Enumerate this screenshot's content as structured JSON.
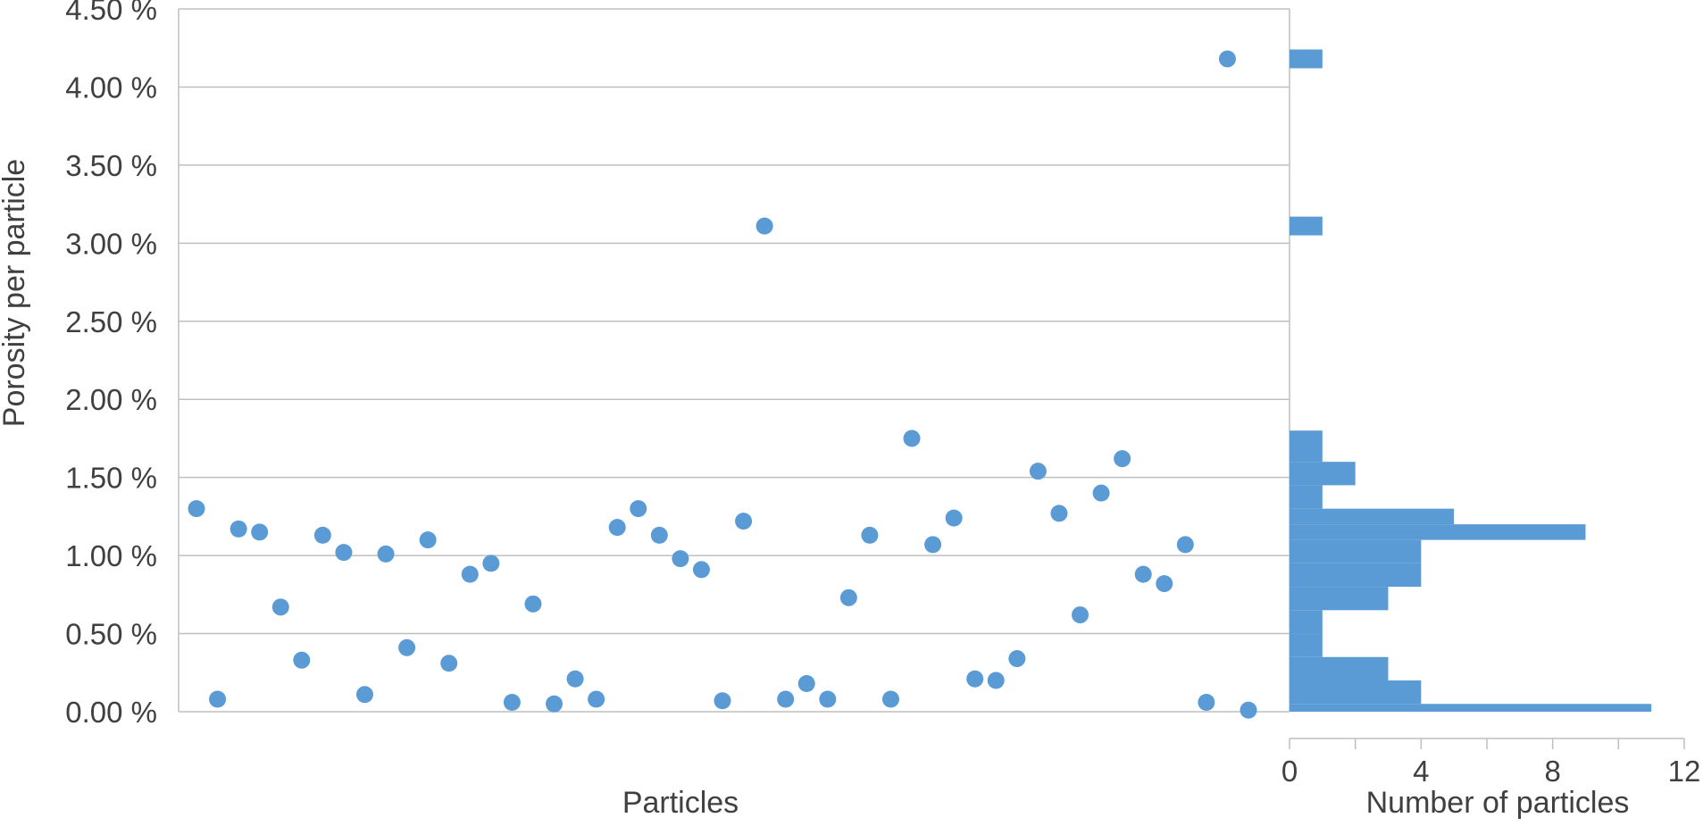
{
  "chart_data": [
    {
      "type": "scatter",
      "xlabel": "Particles",
      "ylabel": "Porosity per particle",
      "y_tick_labels": [
        "0.00 %",
        "0.50 %",
        "1.00 %",
        "1.50 %",
        "2.00 %",
        "2.50 %",
        "3.00 %",
        "3.50 %",
        "4.00 %",
        "4.50 %"
      ],
      "ylim": [
        0,
        4.5
      ],
      "y_unit": "%",
      "grid": "horizontal",
      "color": "#5b9bd5",
      "points": [
        {
          "x": 1,
          "y": 1.3
        },
        {
          "x": 2,
          "y": 0.08
        },
        {
          "x": 3,
          "y": 1.17
        },
        {
          "x": 4,
          "y": 1.15
        },
        {
          "x": 5,
          "y": 0.67
        },
        {
          "x": 6,
          "y": 0.33
        },
        {
          "x": 7,
          "y": 1.13
        },
        {
          "x": 8,
          "y": 1.02
        },
        {
          "x": 9,
          "y": 0.11
        },
        {
          "x": 10,
          "y": 1.01
        },
        {
          "x": 11,
          "y": 0.41
        },
        {
          "x": 12,
          "y": 1.1
        },
        {
          "x": 13,
          "y": 0.31
        },
        {
          "x": 14,
          "y": 0.88
        },
        {
          "x": 15,
          "y": 0.95
        },
        {
          "x": 16,
          "y": 0.06
        },
        {
          "x": 17,
          "y": 0.69
        },
        {
          "x": 18,
          "y": 0.05
        },
        {
          "x": 19,
          "y": 0.21
        },
        {
          "x": 20,
          "y": 0.08
        },
        {
          "x": 21,
          "y": 1.18
        },
        {
          "x": 22,
          "y": 1.3
        },
        {
          "x": 23,
          "y": 1.13
        },
        {
          "x": 24,
          "y": 0.98
        },
        {
          "x": 25,
          "y": 0.91
        },
        {
          "x": 26,
          "y": 0.07
        },
        {
          "x": 27,
          "y": 1.22
        },
        {
          "x": 28,
          "y": 3.11
        },
        {
          "x": 29,
          "y": 0.08
        },
        {
          "x": 30,
          "y": 0.18
        },
        {
          "x": 31,
          "y": 0.08
        },
        {
          "x": 32,
          "y": 0.73
        },
        {
          "x": 33,
          "y": 1.13
        },
        {
          "x": 34,
          "y": 0.08
        },
        {
          "x": 35,
          "y": 1.75
        },
        {
          "x": 36,
          "y": 1.07
        },
        {
          "x": 37,
          "y": 1.24
        },
        {
          "x": 38,
          "y": 0.21
        },
        {
          "x": 39,
          "y": 0.2
        },
        {
          "x": 40,
          "y": 0.34
        },
        {
          "x": 41,
          "y": 1.54
        },
        {
          "x": 42,
          "y": 1.27
        },
        {
          "x": 43,
          "y": 0.62
        },
        {
          "x": 44,
          "y": 1.4
        },
        {
          "x": 45,
          "y": 1.62
        },
        {
          "x": 46,
          "y": 0.88
        },
        {
          "x": 47,
          "y": 0.82
        },
        {
          "x": 48,
          "y": 1.07
        },
        {
          "x": 49,
          "y": 0.06
        },
        {
          "x": 50,
          "y": 4.18
        },
        {
          "x": 51,
          "y": 0.01
        }
      ]
    },
    {
      "type": "bar",
      "orientation": "horizontal",
      "xlabel": "Number of particles",
      "x_tick_labels": [
        "0",
        "4",
        "8",
        "12"
      ],
      "xlim": [
        0,
        12
      ],
      "color": "#5b9bd5",
      "bins": [
        {
          "from": 0.0,
          "to": 0.05,
          "count": 11
        },
        {
          "from": 0.05,
          "to": 0.2,
          "count": 4
        },
        {
          "from": 0.2,
          "to": 0.35,
          "count": 3
        },
        {
          "from": 0.35,
          "to": 0.5,
          "count": 1
        },
        {
          "from": 0.5,
          "to": 0.65,
          "count": 1
        },
        {
          "from": 0.65,
          "to": 0.8,
          "count": 3
        },
        {
          "from": 0.8,
          "to": 0.95,
          "count": 4
        },
        {
          "from": 0.95,
          "to": 1.1,
          "count": 4
        },
        {
          "from": 1.1,
          "to": 1.2,
          "count": 9
        },
        {
          "from": 1.2,
          "to": 1.3,
          "count": 5
        },
        {
          "from": 1.3,
          "to": 1.45,
          "count": 1
        },
        {
          "from": 1.45,
          "to": 1.6,
          "count": 2
        },
        {
          "from": 1.6,
          "to": 1.8,
          "count": 1
        },
        {
          "from": 3.05,
          "to": 3.17,
          "count": 1
        },
        {
          "from": 4.12,
          "to": 4.24,
          "count": 1
        }
      ]
    }
  ]
}
